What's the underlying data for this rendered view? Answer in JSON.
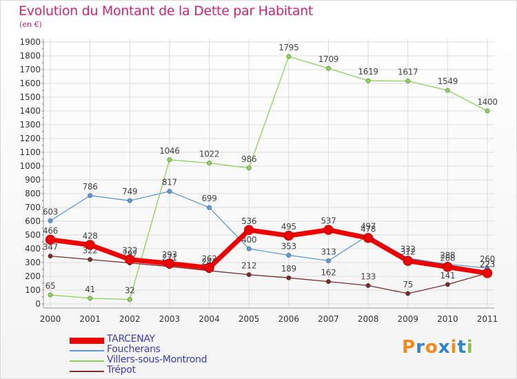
{
  "title": "Evolution du Montant de la Dette par Habitant",
  "unit": "(en €)",
  "logo": {
    "letters": [
      "P",
      "r",
      "o",
      "x",
      "i",
      "t",
      "i"
    ],
    "colors": [
      "#f08c1e",
      "#2e86c8",
      "#f08c1e",
      "#2e86c8",
      "#f08c1e",
      "#2e86c8",
      "#8cc63f"
    ]
  },
  "chart_data": {
    "type": "line",
    "title": "Evolution du Montant de la Dette par Habitant",
    "ylabel": "(en €)",
    "xlabel": "",
    "x": [
      "2000",
      "2001",
      "2002",
      "2003",
      "2004",
      "2005",
      "2006",
      "2007",
      "2008",
      "2009",
      "2010",
      "2011"
    ],
    "ylim": [
      0,
      1900
    ],
    "yticks": [
      0,
      100,
      200,
      300,
      400,
      500,
      600,
      700,
      800,
      900,
      1000,
      1100,
      1200,
      1300,
      1400,
      1500,
      1600,
      1700,
      1800,
      1900
    ],
    "grid": true,
    "legend_position": "bottom-left",
    "series": [
      {
        "name": "Villers-sous-Montrond",
        "color": "#8cd15a",
        "values": [
          65,
          41,
          32,
          1046,
          1022,
          986,
          1795,
          1709,
          1619,
          1617,
          1549,
          1400
        ]
      },
      {
        "name": "Foucherans",
        "color": "#5b9bd5",
        "values": [
          603,
          786,
          749,
          817,
          699,
          400,
          353,
          313,
          497,
          332,
          288,
          260
        ]
      },
      {
        "name": "Trépot",
        "color": "#7a2d2d",
        "values": [
          347,
          322,
          297,
          271,
          241,
          212,
          189,
          162,
          133,
          75,
          141,
          223
        ]
      },
      {
        "name": "TARCENAY",
        "color": "#ee0000",
        "values": [
          466,
          428,
          322,
          293,
          262,
          536,
          495,
          537,
          478,
          312,
          268,
          223
        ]
      }
    ],
    "legend_order": [
      "TARCENAY",
      "Foucherans",
      "Villers-sous-Montrond",
      "Trépot"
    ]
  }
}
